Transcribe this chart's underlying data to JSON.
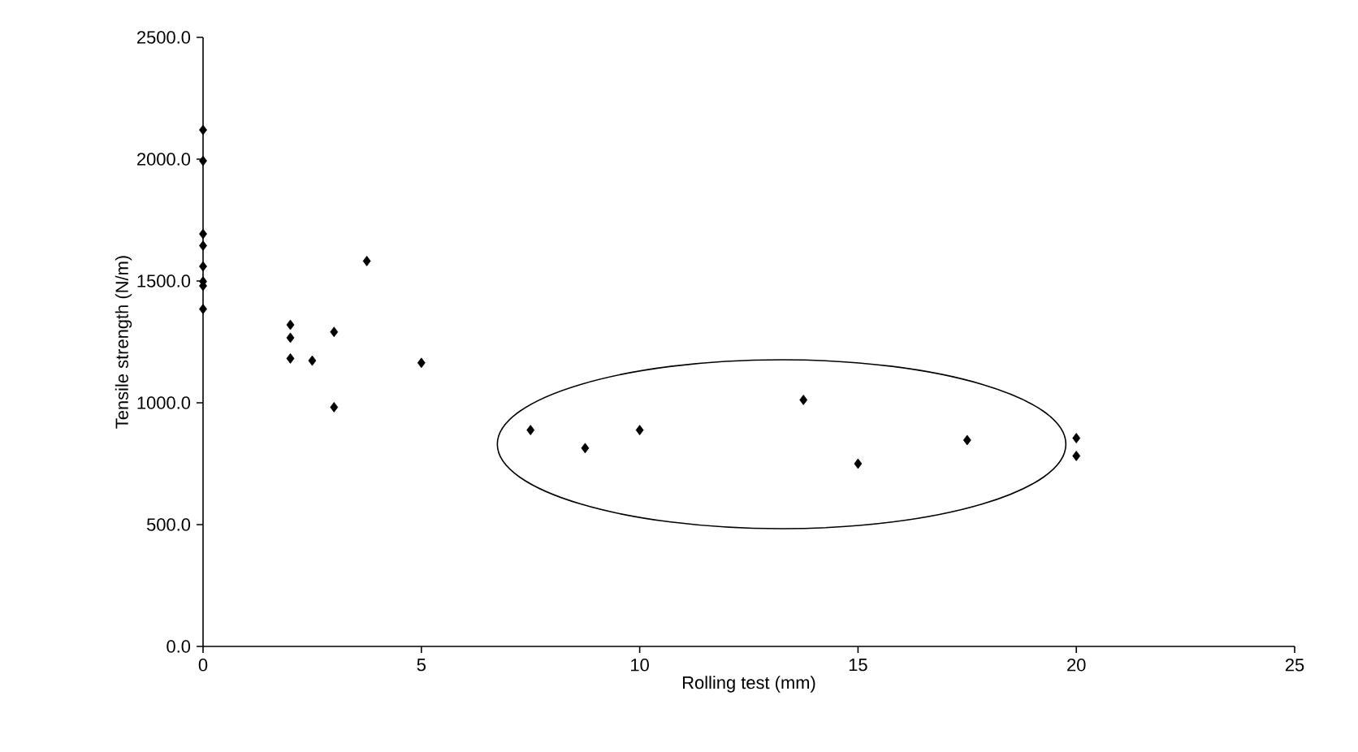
{
  "chart_data": {
    "type": "scatter",
    "xlabel": "Rolling test  (mm)",
    "ylabel": "Tensile strength (N/m)",
    "x": [
      0,
      0,
      0,
      0,
      0,
      0,
      0,
      0,
      2,
      2,
      2,
      2.5,
      3,
      3,
      3.75,
      5,
      7.5,
      8.75,
      10,
      13.75,
      15,
      17.5,
      20,
      20
    ],
    "values": [
      2120,
      1993,
      1693,
      1645,
      1560,
      1498,
      1480,
      1385,
      1320,
      1267,
      1182,
      1173,
      1291,
      982,
      1582,
      1164,
      888,
      814,
      888,
      1012,
      750,
      847,
      855,
      782
    ],
    "color": "#000000",
    "marker": "diamond",
    "xlim": [
      0,
      25
    ],
    "xticks": [
      0,
      5,
      10,
      15,
      20,
      25
    ],
    "ylim": [
      0,
      2500
    ],
    "yticks": [
      {
        "value": 0,
        "label": "0.0"
      },
      {
        "value": 500,
        "label": "500.0"
      },
      {
        "value": 1000,
        "label": "1000.0"
      },
      {
        "value": 1500,
        "label": "1500.0"
      },
      {
        "value": 2000,
        "label": "2000.0"
      },
      {
        "value": 2500,
        "label": "2500.0"
      }
    ],
    "grid": false
  }
}
